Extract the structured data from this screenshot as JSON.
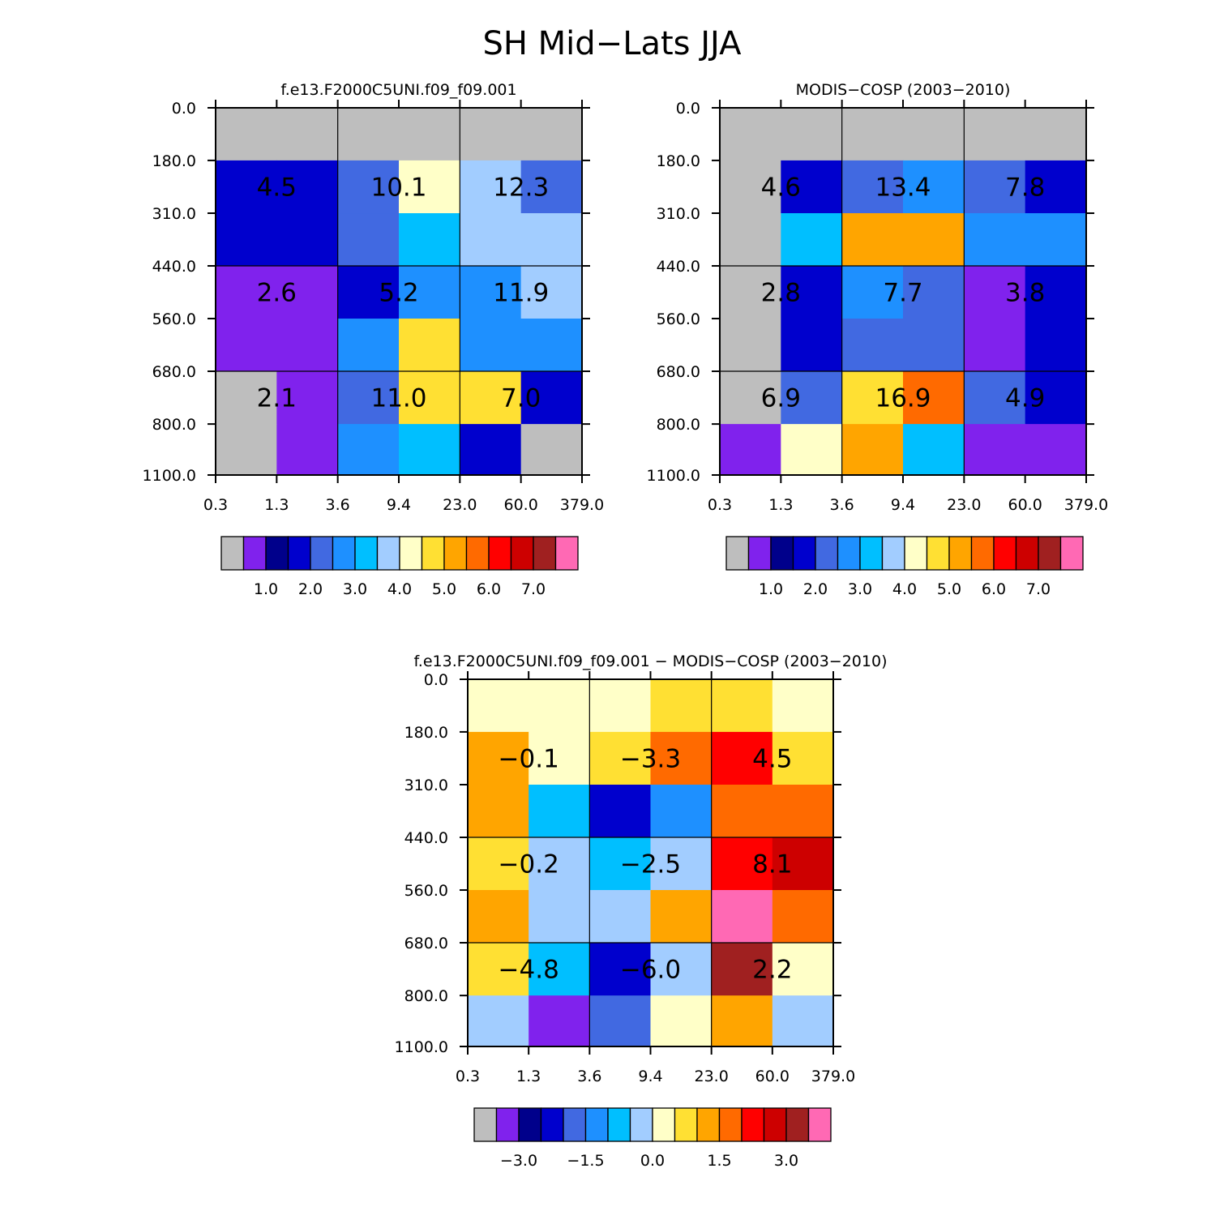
{
  "title": "SH Mid-Lats JJA",
  "chart_data": [
    {
      "type": "heatmap",
      "title": "f.e13.F2000C5UNI.f09_f09.001",
      "x_ticks": [
        "0.3",
        "1.3",
        "3.6",
        "9.4",
        "23.0",
        "60.0",
        "379.0"
      ],
      "y_ticks": [
        "0.0",
        "180.0",
        "310.0",
        "440.0",
        "560.0",
        "680.0",
        "800.0",
        "1100.0"
      ],
      "cells": [
        [
          0,
          0,
          0,
          0,
          0,
          0
        ],
        [
          3,
          3,
          4,
          8,
          7,
          4
        ],
        [
          3,
          3,
          4,
          6,
          7,
          7
        ],
        [
          1,
          1,
          3,
          5,
          5,
          7
        ],
        [
          1,
          1,
          5,
          9,
          5,
          5
        ],
        [
          0,
          1,
          4,
          9,
          9,
          3
        ],
        [
          0,
          1,
          5,
          6,
          3,
          0
        ]
      ],
      "annotations": [
        [
          "4.5",
          "10.1",
          "12.3"
        ],
        [
          "2.6",
          "5.2",
          "11.9"
        ],
        [
          "2.1",
          "11.0",
          "7.0"
        ]
      ],
      "colorbar": {
        "ticks": [
          "1.0",
          "2.0",
          "3.0",
          "4.0",
          "5.0",
          "6.0",
          "7.0"
        ]
      }
    },
    {
      "type": "heatmap",
      "title": "MODIS-COSP (2003-2010)",
      "x_ticks": [
        "0.3",
        "1.3",
        "3.6",
        "9.4",
        "23.0",
        "60.0",
        "379.0"
      ],
      "y_ticks": [
        "0.0",
        "180.0",
        "310.0",
        "440.0",
        "560.0",
        "680.0",
        "800.0",
        "1100.0"
      ],
      "cells": [
        [
          0,
          0,
          0,
          0,
          0,
          0
        ],
        [
          0,
          3,
          4,
          5,
          4,
          3
        ],
        [
          0,
          6,
          10,
          10,
          5,
          5
        ],
        [
          0,
          3,
          5,
          4,
          1,
          3
        ],
        [
          0,
          3,
          4,
          4,
          1,
          3
        ],
        [
          0,
          4,
          9,
          11,
          4,
          3
        ],
        [
          1,
          8,
          10,
          6,
          1,
          1
        ]
      ],
      "annotations": [
        [
          "4.6",
          "13.4",
          "7.8"
        ],
        [
          "2.8",
          "7.7",
          "3.8"
        ],
        [
          "6.9",
          "16.9",
          "4.9"
        ]
      ],
      "colorbar": {
        "ticks": [
          "1.0",
          "2.0",
          "3.0",
          "4.0",
          "5.0",
          "6.0",
          "7.0"
        ]
      }
    },
    {
      "type": "heatmap",
      "title": "f.e13.F2000C5UNI.f09_f09.001 - MODIS-COSP (2003-2010)",
      "x_ticks": [
        "0.3",
        "1.3",
        "3.6",
        "9.4",
        "23.0",
        "60.0",
        "379.0"
      ],
      "y_ticks": [
        "0.0",
        "180.0",
        "310.0",
        "440.0",
        "560.0",
        "680.0",
        "800.0",
        "1100.0"
      ],
      "cells": [
        [
          8,
          8,
          8,
          9,
          9,
          8
        ],
        [
          10,
          8,
          9,
          11,
          12,
          9
        ],
        [
          10,
          6,
          3,
          5,
          11,
          11
        ],
        [
          9,
          7,
          6,
          7,
          12,
          13
        ],
        [
          10,
          7,
          7,
          10,
          15,
          11
        ],
        [
          9,
          6,
          3,
          7,
          14,
          8
        ],
        [
          7,
          1,
          4,
          8,
          10,
          7
        ]
      ],
      "annotations": [
        [
          "-0.1",
          "-3.3",
          "4.5"
        ],
        [
          "-0.2",
          "-2.5",
          "8.1"
        ],
        [
          "-4.8",
          "-6.0",
          "2.2"
        ]
      ],
      "colorbar": {
        "ticks": [
          "-3.0",
          "-1.5",
          "0.0",
          "1.5",
          "3.0"
        ]
      }
    }
  ],
  "palette": [
    "#bebebe",
    "#8022ed",
    "#00008b",
    "#0000cd",
    "#4169e1",
    "#1e90ff",
    "#00bfff",
    "#a2cdff",
    "#ffffc8",
    "#ffe033",
    "#ffa500",
    "#ff6a00",
    "#ff0000",
    "#cd0000",
    "#a02020",
    "#ff69b4"
  ]
}
